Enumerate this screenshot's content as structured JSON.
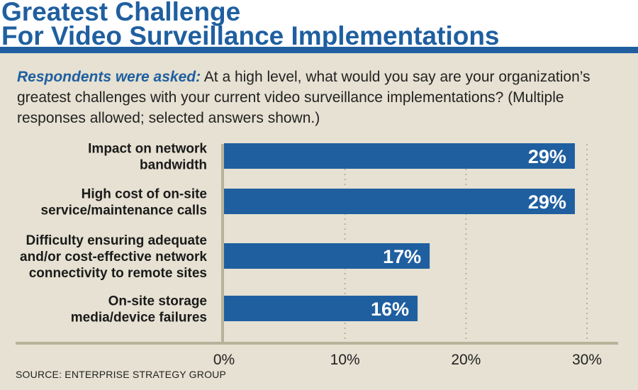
{
  "header": {
    "title_line1": "Greatest Challenge",
    "title_line2": "For Video Surveillance Implementations",
    "question_lead": "Respondents were asked:",
    "question_text": " At a high level, what would you say are your organization’s greatest challenges with your current video surveillance implementations? (Multiple responses allowed; selected answers shown.)"
  },
  "source": "SOURCE: ENTERPRISE STRATEGY GROUP",
  "colors": {
    "bar": "#1f5fa0",
    "background": "#e6e1d2",
    "axis": "#b8b29c",
    "title": "#1f5fa0"
  },
  "chart_data": {
    "type": "bar",
    "orientation": "horizontal",
    "categories": [
      [
        "Impact on network",
        "bandwidth"
      ],
      [
        "High cost of on-site",
        "service/maintenance calls"
      ],
      [
        "Difficulty ensuring adequate",
        "and/or cost-effective network",
        "connectivity to remote sites"
      ],
      [
        "On-site storage",
        "media/device failures"
      ]
    ],
    "values": [
      29,
      29,
      17,
      16
    ],
    "value_labels": [
      "29%",
      "29%",
      "17%",
      "16%"
    ],
    "xlim": [
      0,
      30
    ],
    "xticks": [
      0,
      10,
      20,
      30
    ],
    "xtick_labels": [
      "0%",
      "10%",
      "20%",
      "30%"
    ],
    "grid": "vertical dotted"
  }
}
